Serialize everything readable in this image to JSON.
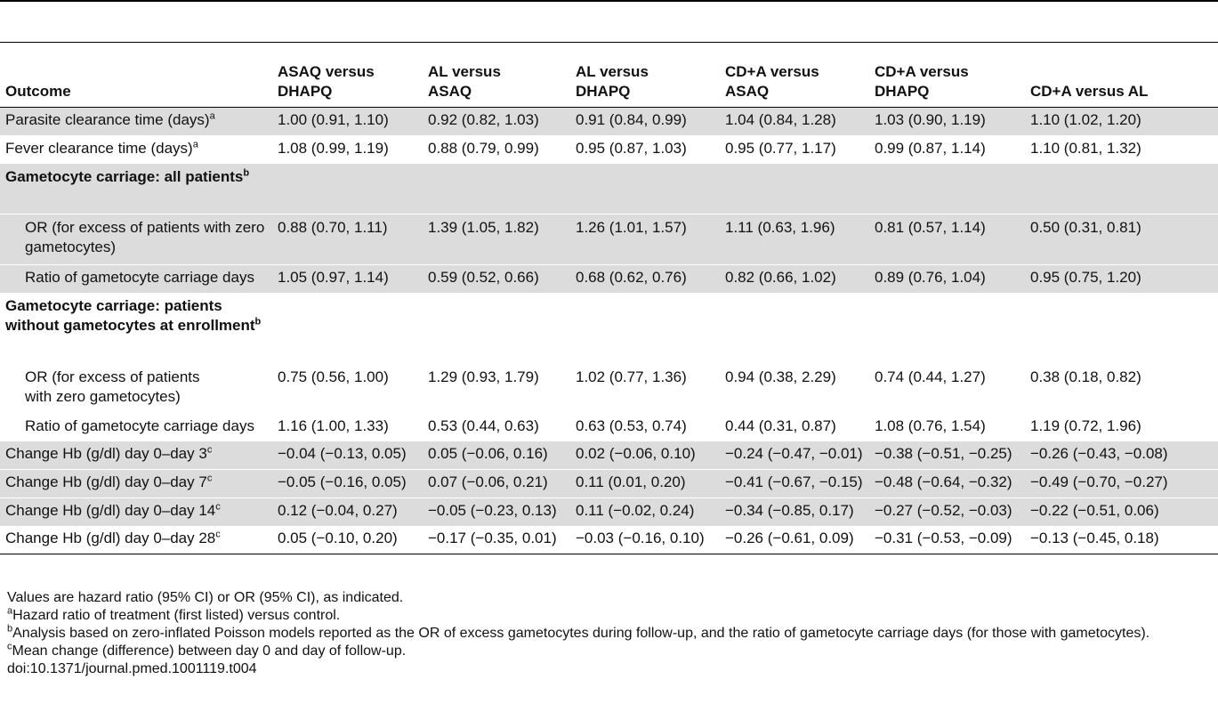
{
  "table": {
    "header": [
      "Outcome",
      "ASAQ versus DHAPQ",
      "AL versus ASAQ",
      "AL versus DHAPQ",
      "CD+A versus ASAQ",
      "CD+A versus DHAPQ",
      "CD+A versus AL"
    ],
    "rows": [
      {
        "label": "Parasite clearance time (days)",
        "sup": "a",
        "values": [
          "1.00 (0.91, 1.10)",
          "0.92 (0.82, 1.03)",
          "0.91 (0.84, 0.99)",
          "1.04 (0.84, 1.28)",
          "1.03 (0.90, 1.19)",
          "1.10 (1.02, 1.20)"
        ]
      },
      {
        "label": "Fever clearance time (days)",
        "sup": "a",
        "values": [
          "1.08 (0.99, 1.19)",
          "0.88 (0.79, 0.99)",
          "0.95 (0.87, 1.03)",
          "0.95 (0.77, 1.17)",
          "0.99 (0.87, 1.14)",
          "1.10 (0.81, 1.32)"
        ]
      },
      {
        "label": "Gametocyte carriage: all patients",
        "sup": "b"
      },
      {
        "label": "OR (for excess of patients with zero gametocytes)",
        "values": [
          "0.88 (0.70, 1.11)",
          "1.39 (1.05, 1.82)",
          "1.26 (1.01, 1.57)",
          "1.11 (0.63, 1.96)",
          "0.81 (0.57, 1.14)",
          "0.50 (0.31, 0.81)"
        ]
      },
      {
        "label": "Ratio of gametocyte carriage days",
        "values": [
          "1.05 (0.97, 1.14)",
          "0.59 (0.52, 0.66)",
          "0.68 (0.62, 0.76)",
          "0.82 (0.66, 1.02)",
          "0.89 (0.76, 1.04)",
          "0.95 (0.75, 1.20)"
        ]
      },
      {
        "label": "Gametocyte carriage: patients without gametocytes at enrollment",
        "sup": "b"
      },
      {
        "label": "OR (for excess of patients with zero gametocytes)",
        "values": [
          "0.75 (0.56, 1.00)",
          "1.29 (0.93, 1.79)",
          "1.02 (0.77, 1.36)",
          "0.94 (0.38, 2.29)",
          "0.74 (0.44, 1.27)",
          "0.38 (0.18, 0.82)"
        ]
      },
      {
        "label": "Ratio of gametocyte carriage days",
        "values": [
          "1.16 (1.00, 1.33)",
          "0.53 (0.44, 0.63)",
          "0.63 (0.53, 0.74)",
          "0.44 (0.31, 0.87)",
          "1.08 (0.76, 1.54)",
          "1.19 (0.72, 1.96)"
        ]
      },
      {
        "label": "Change Hb (g/dl) day 0–day 3",
        "sup": "c",
        "values": [
          "−0.04 (−0.13, 0.05)",
          "0.05 (−0.06, 0.16)",
          "0.02 (−0.06, 0.10)",
          "−0.24 (−0.47, −0.01)",
          "−0.38 (−0.51, −0.25)",
          "−0.26 (−0.43, −0.08)"
        ]
      },
      {
        "label": "Change Hb (g/dl) day 0–day 7",
        "sup": "c",
        "values": [
          "−0.05 (−0.16, 0.05)",
          "0.07 (−0.06, 0.21)",
          "0.11 (0.01, 0.20)",
          "−0.41 (−0.67, −0.15)",
          "−0.48 (−0.64, −0.32)",
          "−0.49 (−0.70, −0.27)"
        ]
      },
      {
        "label": "Change Hb (g/dl) day 0–day 14",
        "sup": "c",
        "values": [
          "0.12 (−0.04, 0.27)",
          "−0.05 (−0.23, 0.13)",
          "0.11 (−0.02, 0.24)",
          "−0.34 (−0.85, 0.17)",
          "−0.27 (−0.52, −0.03)",
          "−0.22 (−0.51, 0.06)"
        ]
      },
      {
        "label": "Change Hb (g/dl) day 0–day 28",
        "sup": "c",
        "values": [
          "0.05 (−0.10, 0.20)",
          "−0.17 (−0.35, 0.01)",
          "−0.03 (−0.16, 0.10)",
          "−0.26 (−0.61, 0.09)",
          "−0.31 (−0.53, −0.09)",
          "−0.13 (−0.45, 0.18)"
        ]
      }
    ]
  },
  "footnotes": {
    "general": "Values are hazard ratio (95% CI) or OR (95% CI), as indicated.",
    "a_mark": "a",
    "a_text": "Hazard ratio of treatment (first listed) versus control.",
    "b_mark": "b",
    "b_text": "Analysis based on zero-inflated Poisson models reported as the OR of excess gametocytes during follow-up, and the ratio of gametocyte carriage days (for those with gametocytes).",
    "c_mark": "c",
    "c_text": "Mean change (difference) between day 0 and day of follow-up.",
    "doi": "doi:10.1371/journal.pmed.1001119.t004"
  }
}
